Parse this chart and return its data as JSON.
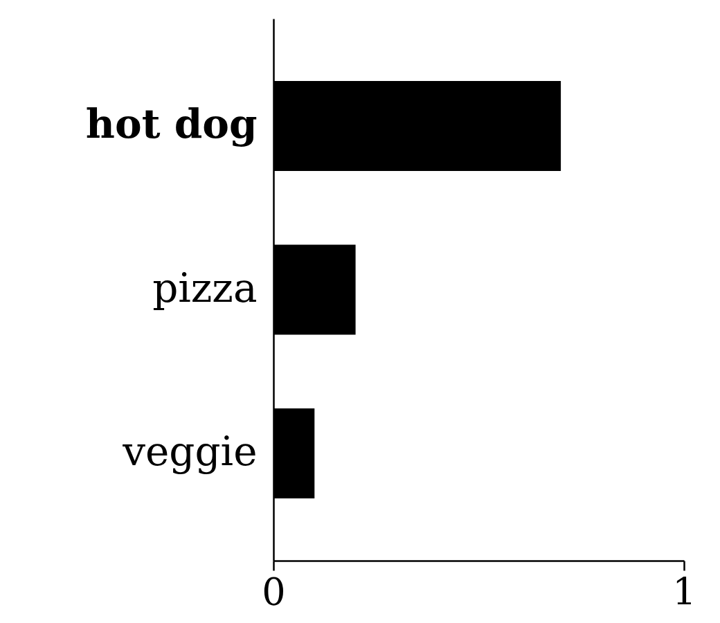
{
  "chart_data": {
    "type": "bar",
    "orientation": "horizontal",
    "categories": [
      "hot dog",
      "pizza",
      "veggie"
    ],
    "values": [
      0.7,
      0.2,
      0.1
    ],
    "color": "#000000",
    "xlim": [
      0,
      1
    ],
    "xticks": [
      0,
      1
    ]
  }
}
